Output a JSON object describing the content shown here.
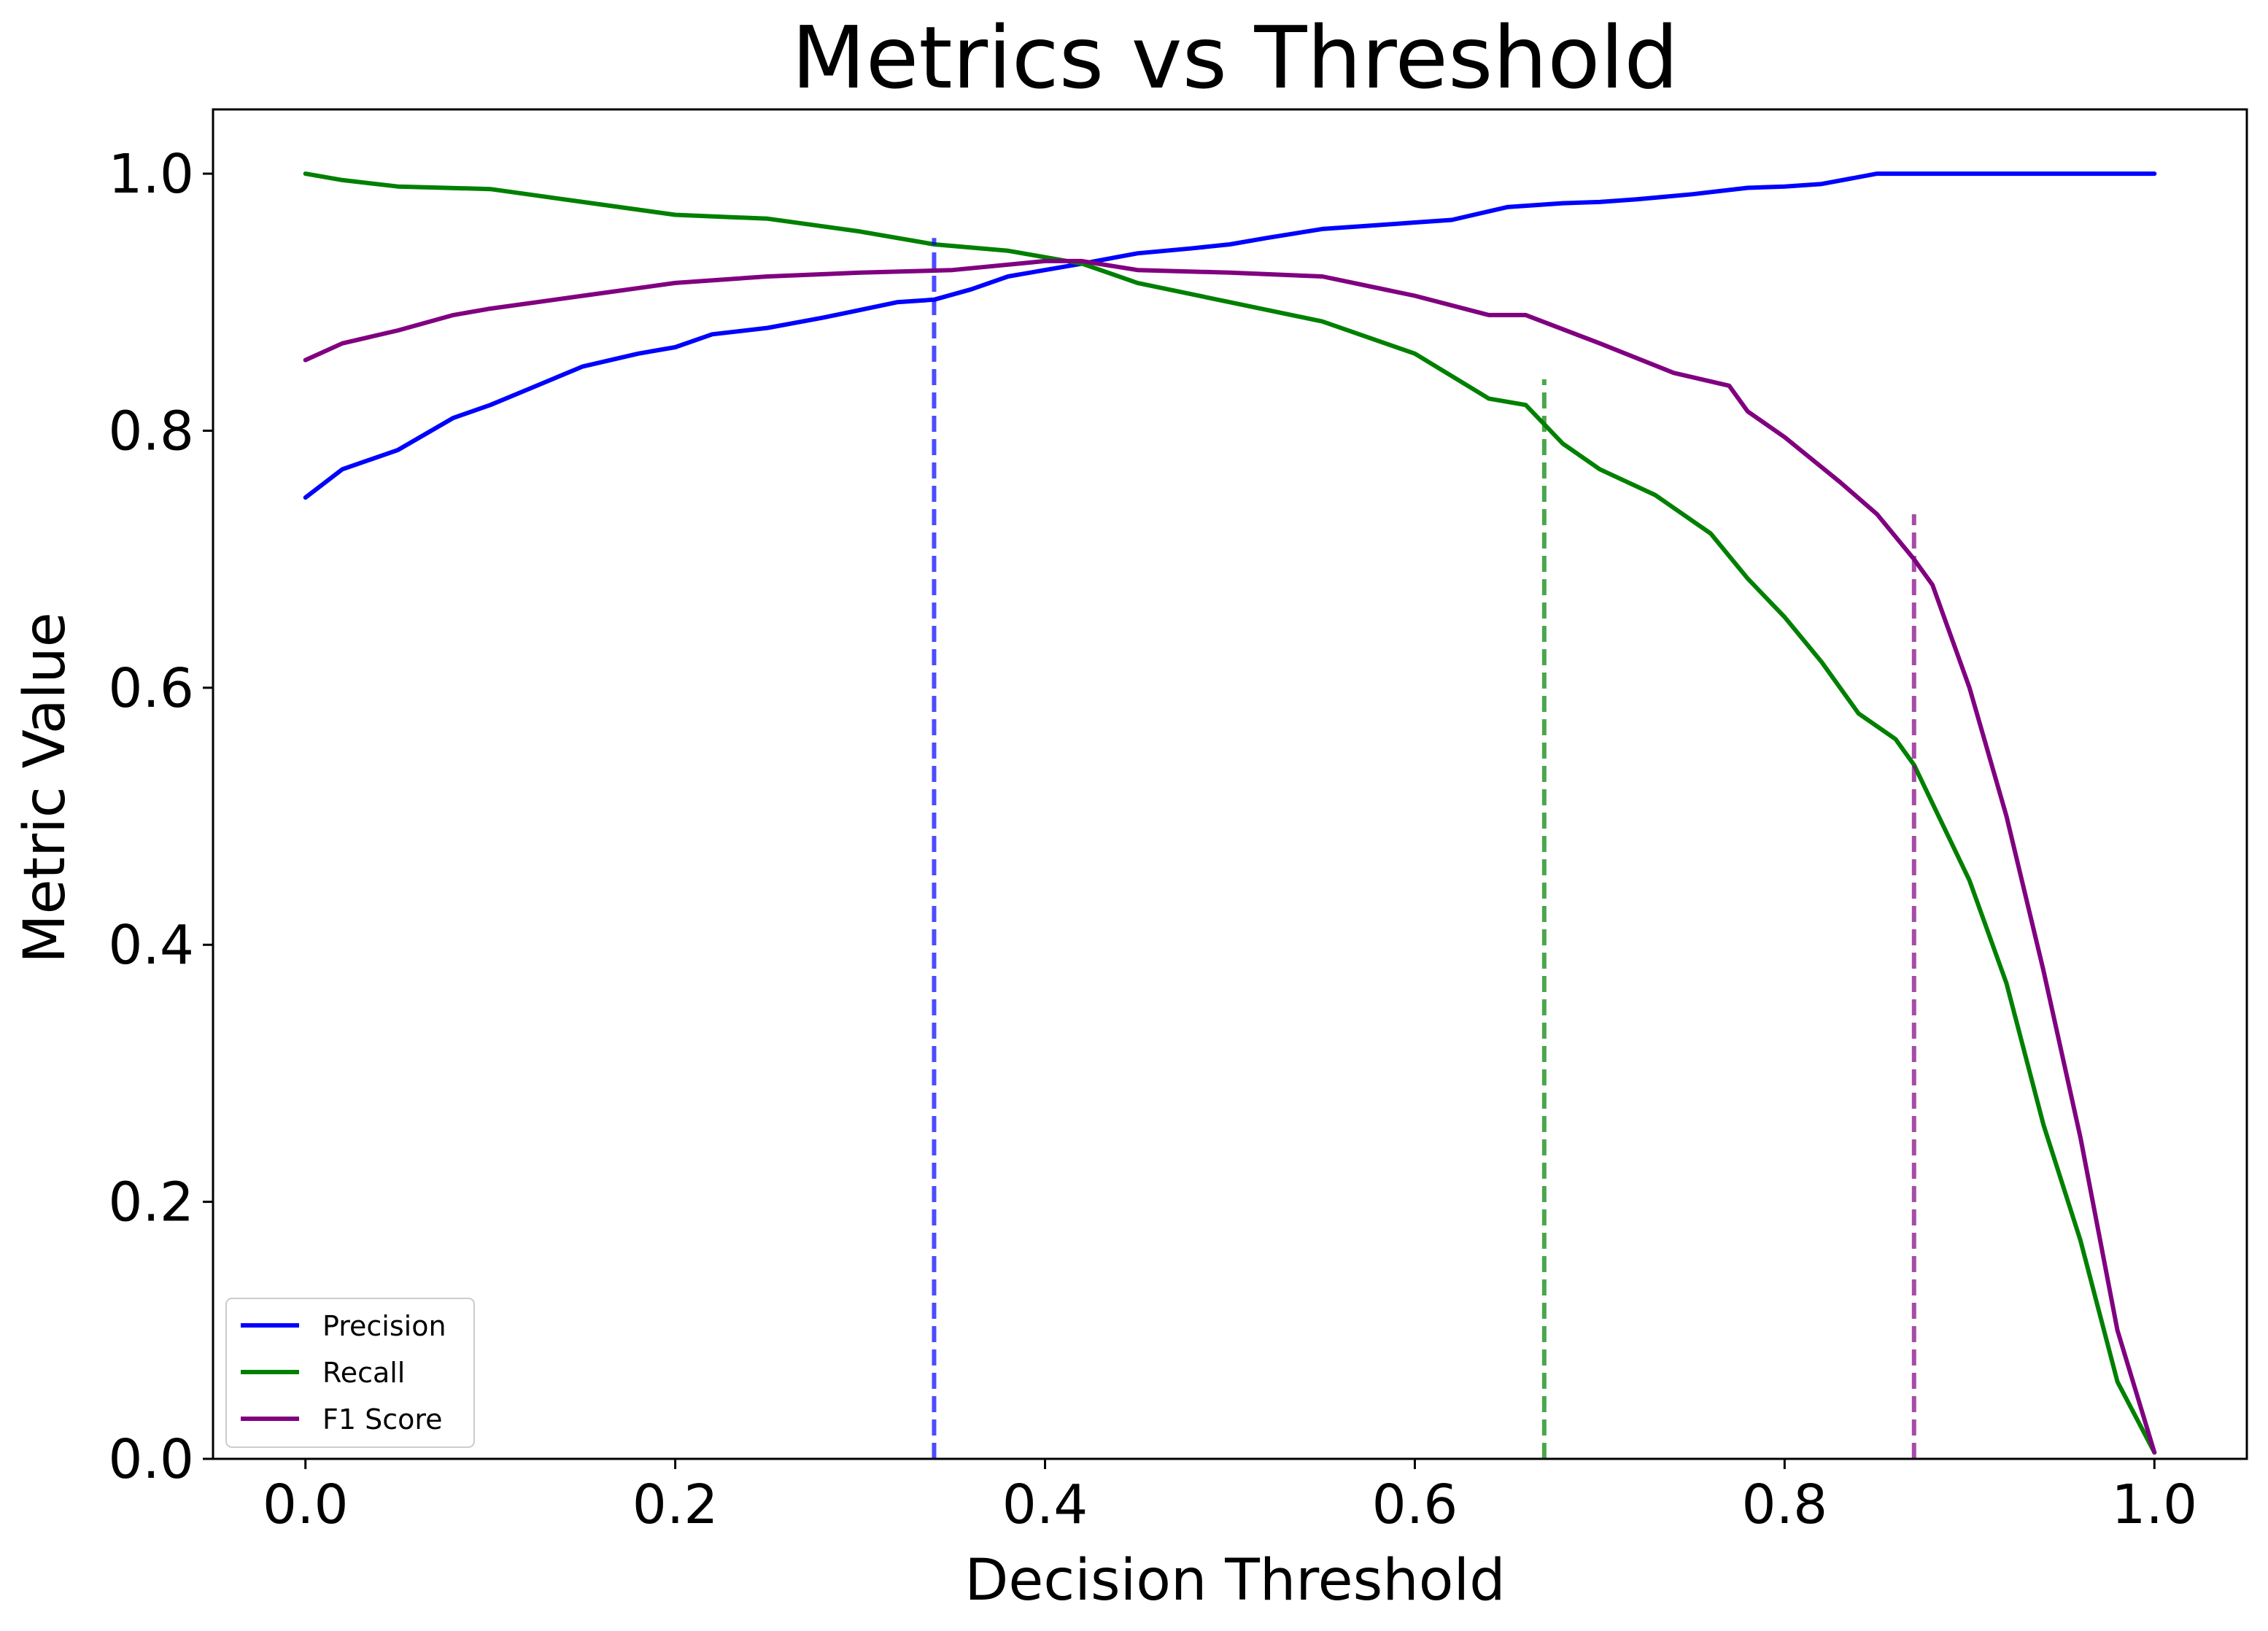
{
  "chart_data": {
    "type": "line",
    "title": "Metrics vs Threshold",
    "xlabel": "Decision Threshold",
    "ylabel": "Metric Value",
    "xlim": [
      -0.05,
      1.05
    ],
    "ylim": [
      0.0,
      1.05
    ],
    "xticks": [
      0.0,
      0.2,
      0.4,
      0.6,
      0.8,
      1.0
    ],
    "xtick_labels": [
      "0.0",
      "0.2",
      "0.4",
      "0.6",
      "0.8",
      "1.0"
    ],
    "yticks": [
      0.0,
      0.2,
      0.4,
      0.6,
      0.8,
      1.0
    ],
    "ytick_labels": [
      "0.0",
      "0.2",
      "0.4",
      "0.6",
      "0.8",
      "1.0"
    ],
    "grid": false,
    "legend": {
      "placement": "lower-left"
    },
    "series": [
      {
        "name": "Precision",
        "color": "#0000ff",
        "x": [
          0.0,
          0.02,
          0.05,
          0.08,
          0.1,
          0.12,
          0.15,
          0.18,
          0.2,
          0.22,
          0.25,
          0.28,
          0.3,
          0.32,
          0.34,
          0.36,
          0.38,
          0.4,
          0.42,
          0.45,
          0.48,
          0.5,
          0.52,
          0.55,
          0.58,
          0.6,
          0.62,
          0.65,
          0.68,
          0.7,
          0.72,
          0.75,
          0.78,
          0.8,
          0.82,
          0.85,
          0.88,
          0.9,
          0.92,
          0.95,
          0.98,
          1.0
        ],
        "y": [
          0.748,
          0.77,
          0.785,
          0.81,
          0.82,
          0.832,
          0.85,
          0.86,
          0.865,
          0.875,
          0.88,
          0.888,
          0.894,
          0.9,
          0.902,
          0.91,
          0.92,
          0.925,
          0.93,
          0.938,
          0.942,
          0.945,
          0.95,
          0.957,
          0.96,
          0.962,
          0.964,
          0.974,
          0.977,
          0.978,
          0.98,
          0.984,
          0.989,
          0.99,
          0.992,
          1.0,
          1.0,
          1.0,
          1.0,
          1.0,
          1.0,
          1.0
        ]
      },
      {
        "name": "Recall",
        "color": "#008000",
        "x": [
          0.0,
          0.02,
          0.05,
          0.1,
          0.15,
          0.2,
          0.25,
          0.3,
          0.34,
          0.38,
          0.42,
          0.45,
          0.5,
          0.55,
          0.6,
          0.64,
          0.66,
          0.68,
          0.7,
          0.73,
          0.76,
          0.78,
          0.8,
          0.82,
          0.84,
          0.86,
          0.87,
          0.88,
          0.9,
          0.92,
          0.94,
          0.96,
          0.98,
          1.0
        ],
        "y": [
          1.0,
          0.995,
          0.99,
          0.988,
          0.978,
          0.968,
          0.965,
          0.955,
          0.945,
          0.94,
          0.93,
          0.915,
          0.9,
          0.885,
          0.86,
          0.825,
          0.82,
          0.79,
          0.77,
          0.75,
          0.72,
          0.685,
          0.655,
          0.62,
          0.58,
          0.56,
          0.54,
          0.51,
          0.45,
          0.37,
          0.26,
          0.17,
          0.06,
          0.005
        ]
      },
      {
        "name": "F1 Score",
        "color": "#800080",
        "x": [
          0.0,
          0.02,
          0.05,
          0.08,
          0.1,
          0.15,
          0.2,
          0.25,
          0.3,
          0.35,
          0.4,
          0.42,
          0.45,
          0.5,
          0.55,
          0.6,
          0.64,
          0.66,
          0.7,
          0.74,
          0.77,
          0.78,
          0.8,
          0.83,
          0.85,
          0.87,
          0.88,
          0.9,
          0.92,
          0.94,
          0.96,
          0.98,
          1.0
        ],
        "y": [
          0.855,
          0.868,
          0.878,
          0.89,
          0.895,
          0.905,
          0.915,
          0.92,
          0.923,
          0.925,
          0.932,
          0.932,
          0.925,
          0.923,
          0.92,
          0.905,
          0.89,
          0.89,
          0.868,
          0.845,
          0.835,
          0.815,
          0.795,
          0.76,
          0.735,
          0.7,
          0.68,
          0.6,
          0.5,
          0.38,
          0.25,
          0.1,
          0.005
        ]
      }
    ],
    "reference_lines": [
      {
        "x": 0.34,
        "y_top": 0.95,
        "color": "#0000ff"
      },
      {
        "x": 0.67,
        "y_top": 0.84,
        "color": "#008000"
      },
      {
        "x": 0.87,
        "y_top": 0.735,
        "color": "#800080"
      }
    ]
  }
}
